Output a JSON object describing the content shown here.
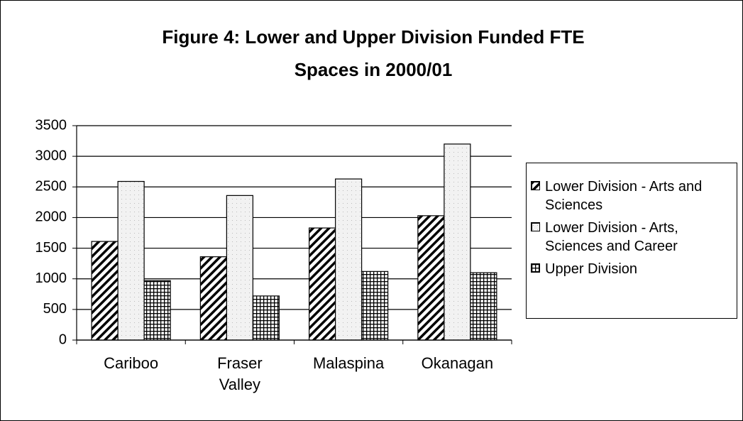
{
  "chart_data": {
    "type": "bar",
    "title": "Figure 4: Lower and Upper Division Funded FTE Spaces in 2000/01",
    "categories": [
      "Cariboo",
      "Fraser Valley",
      "Malaspina",
      "Okanagan"
    ],
    "series": [
      {
        "name": "Lower Division - Arts and Sciences",
        "color": "#000000",
        "values": [
          1610,
          1360,
          1830,
          2030
        ]
      },
      {
        "name": "Lower Division - Arts, Sciences and Career",
        "color": "#e8e8e8",
        "values": [
          2590,
          2360,
          2630,
          3200
        ]
      },
      {
        "name": "Upper Division",
        "color": "#000000",
        "values": [
          970,
          720,
          1120,
          1100
        ]
      }
    ],
    "ylim": [
      0,
      3500
    ],
    "yticks": [
      0,
      500,
      1000,
      1500,
      2000,
      2500,
      3000,
      3500
    ],
    "grid": true,
    "legend": "right"
  }
}
